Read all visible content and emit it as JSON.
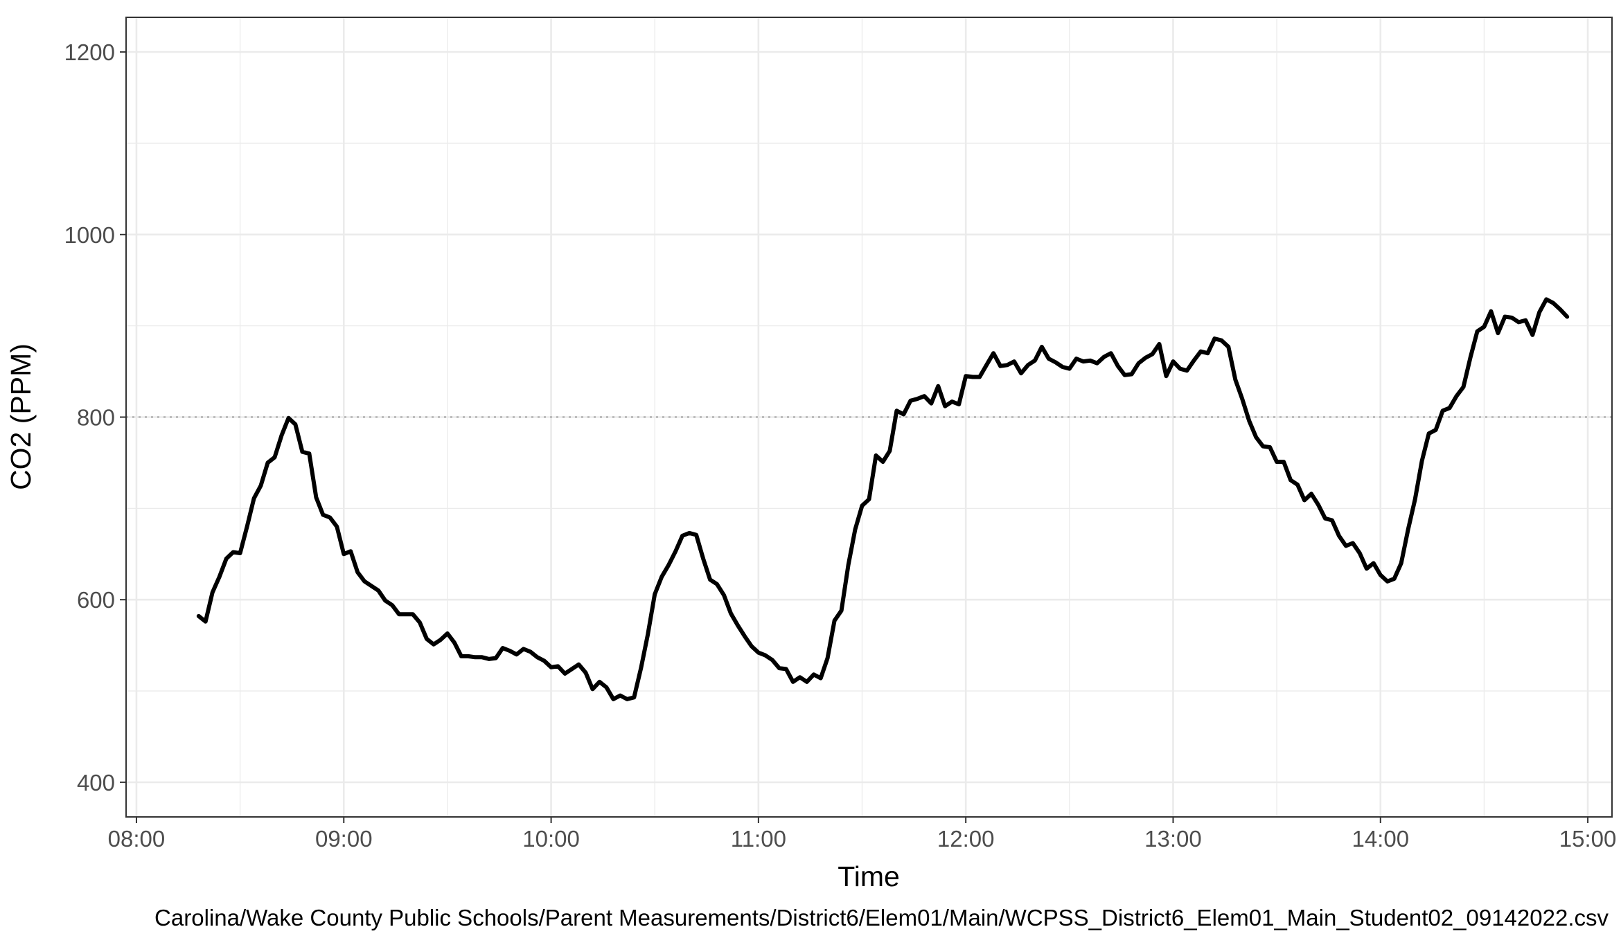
{
  "chart_data": {
    "type": "line",
    "title": "",
    "xlabel": "Time",
    "ylabel": "CO2 (PPM)",
    "caption": "Carolina/Wake County Public Schools/Parent Measurements/District6/Elem01/Main/WCPSS_District6_Elem01_Main_Student02_09142022.csv",
    "xlim": [
      "07:57",
      "15:07"
    ],
    "ylim": [
      362,
      1238
    ],
    "x_ticks": [
      "08:00",
      "09:00",
      "10:00",
      "11:00",
      "12:00",
      "13:00",
      "14:00",
      "15:00"
    ],
    "y_ticks": [
      400,
      600,
      800,
      1000,
      1200
    ],
    "grid": true,
    "reference_line": {
      "y": 800,
      "style": "dotted",
      "color": "#bdbdbd"
    },
    "line_color": "#000000",
    "series": [
      {
        "x": [
          "08:18",
          "08:20",
          "08:22",
          "08:24",
          "08:26",
          "08:28",
          "08:30",
          "08:32",
          "08:34",
          "08:36",
          "08:38",
          "08:40",
          "08:42",
          "08:44",
          "08:46",
          "08:48",
          "08:50",
          "08:52",
          "08:54",
          "08:56",
          "08:58",
          "09:00",
          "09:02",
          "09:04",
          "09:06",
          "09:08",
          "09:10",
          "09:12",
          "09:14",
          "09:16",
          "09:18",
          "09:20",
          "09:22",
          "09:24",
          "09:26",
          "09:28",
          "09:30",
          "09:32",
          "09:34",
          "09:36",
          "09:38",
          "09:40",
          "09:42",
          "09:44",
          "09:46",
          "09:48",
          "09:50",
          "09:52",
          "09:54",
          "09:56",
          "09:58",
          "10:00",
          "10:02",
          "10:04",
          "10:06",
          "10:08",
          "10:10",
          "10:12",
          "10:14",
          "10:16",
          "10:18",
          "10:20",
          "10:22",
          "10:24",
          "10:26",
          "10:28",
          "10:30",
          "10:32",
          "10:34",
          "10:36",
          "10:38",
          "10:40",
          "10:42",
          "10:44",
          "10:46",
          "10:48",
          "10:50",
          "10:52",
          "10:54",
          "10:56",
          "10:58",
          "11:00",
          "11:02",
          "11:04",
          "11:06",
          "11:08",
          "11:10",
          "11:12",
          "11:14",
          "11:16",
          "11:18",
          "11:20",
          "11:22",
          "11:24",
          "11:26",
          "11:28",
          "11:30",
          "11:32",
          "11:34",
          "11:36",
          "11:38",
          "11:40",
          "11:42",
          "11:44",
          "11:46",
          "11:48",
          "11:50",
          "11:52",
          "11:54",
          "11:56",
          "11:58",
          "12:00",
          "12:02",
          "12:04",
          "12:06",
          "12:08",
          "12:10",
          "12:12",
          "12:14",
          "12:16",
          "12:18",
          "12:20",
          "12:22",
          "12:24",
          "12:26",
          "12:28",
          "12:30",
          "12:32",
          "12:34",
          "12:36",
          "12:38",
          "12:40",
          "12:42",
          "12:44",
          "12:46",
          "12:48",
          "12:50",
          "12:52",
          "12:54",
          "12:56",
          "12:58",
          "13:00",
          "13:02",
          "13:04",
          "13:06",
          "13:08",
          "13:10",
          "13:12",
          "13:14",
          "13:16",
          "13:18",
          "13:20",
          "13:22",
          "13:24",
          "13:26",
          "13:28",
          "13:30",
          "13:32",
          "13:34",
          "13:36",
          "13:38",
          "13:40",
          "13:42",
          "13:44",
          "13:46",
          "13:48",
          "13:50",
          "13:52",
          "13:54",
          "13:56",
          "13:58",
          "14:00",
          "14:02",
          "14:04",
          "14:06",
          "14:08",
          "14:10",
          "14:12",
          "14:14",
          "14:16",
          "14:18",
          "14:20",
          "14:22",
          "14:24",
          "14:26",
          "14:28",
          "14:30",
          "14:32",
          "14:34",
          "14:36",
          "14:38",
          "14:40",
          "14:42",
          "14:44",
          "14:46",
          "14:48",
          "14:50",
          "14:52",
          "14:54"
        ],
        "y": [
          582,
          576,
          608,
          625,
          645,
          652,
          651,
          680,
          711,
          725,
          750,
          756,
          780,
          799,
          792,
          762,
          760,
          712,
          693,
          690,
          680,
          650,
          653,
          630,
          620,
          615,
          610,
          599,
          594,
          584,
          584,
          584,
          575,
          557,
          551,
          556,
          563,
          553,
          538,
          538,
          537,
          537,
          535,
          536,
          547,
          544,
          540,
          546,
          543,
          537,
          533,
          526,
          527,
          519,
          524,
          529,
          520,
          502,
          510,
          504,
          491,
          495,
          491,
          493,
          525,
          562,
          606,
          625,
          638,
          653,
          670,
          673,
          671,
          645,
          622,
          617,
          605,
          585,
          572,
          560,
          549,
          542,
          539,
          534,
          525,
          524,
          510,
          515,
          510,
          518,
          514,
          536,
          577,
          588,
          638,
          677,
          703,
          710,
          758,
          751,
          763,
          807,
          803,
          818,
          820,
          823,
          815,
          834,
          812,
          817,
          814,
          845,
          844,
          844,
          857,
          870,
          856,
          857,
          861,
          848,
          857,
          862,
          877,
          864,
          860,
          855,
          853,
          864,
          861,
          862,
          859,
          866,
          870,
          856,
          846,
          847,
          859,
          865,
          869,
          880,
          845,
          861,
          853,
          851,
          862,
          872,
          870,
          886,
          884,
          877,
          841,
          820,
          796,
          778,
          768,
          767,
          751,
          751,
          731,
          726,
          709,
          716,
          704,
          689,
          687,
          670,
          659,
          662,
          651,
          634,
          640,
          627,
          620,
          623,
          640,
          677,
          710,
          752,
          782,
          786,
          807,
          810,
          823,
          833,
          865,
          894,
          899,
          916,
          892,
          910,
          909,
          904,
          906,
          890,
          915,
          929,
          925,
          918,
          910
        ]
      }
    ]
  }
}
